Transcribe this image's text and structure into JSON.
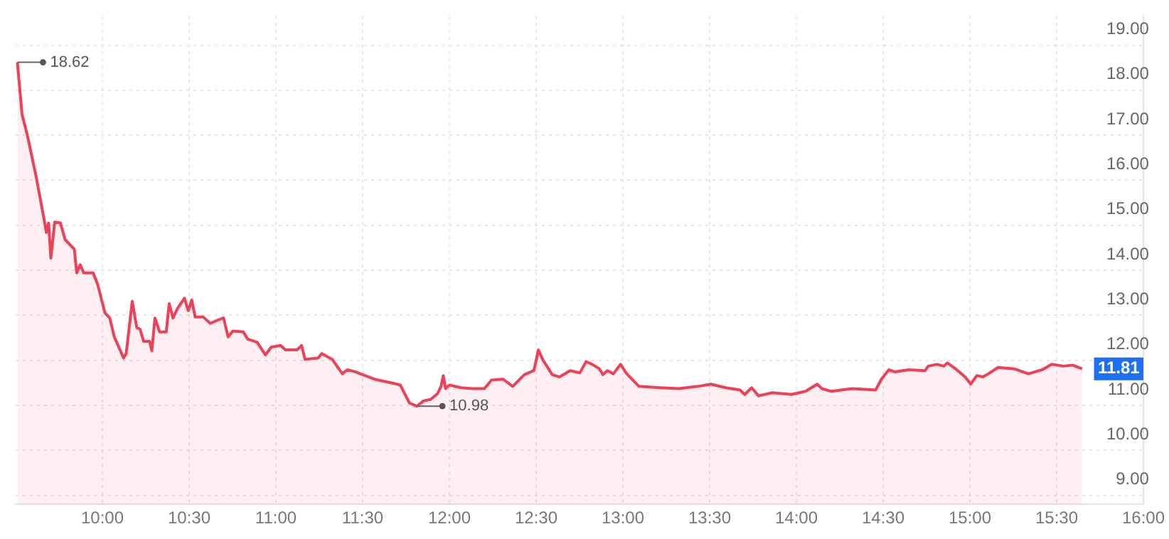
{
  "chart_data": {
    "type": "area",
    "xlim": [
      9.5,
      16.0
    ],
    "xticks": [
      {
        "value": 10,
        "label": "10:00"
      },
      {
        "value": 10.5,
        "label": "10:30"
      },
      {
        "value": 11,
        "label": "11:00"
      },
      {
        "value": 11.5,
        "label": "11:30"
      },
      {
        "value": 12,
        "label": "12:00"
      },
      {
        "value": 12.5,
        "label": "12:30"
      },
      {
        "value": 13,
        "label": "13:00"
      },
      {
        "value": 13.5,
        "label": "13:30"
      },
      {
        "value": 14,
        "label": "14:00"
      },
      {
        "value": 14.5,
        "label": "14:30"
      },
      {
        "value": 15,
        "label": "15:00"
      },
      {
        "value": 15.5,
        "label": "15:30"
      },
      {
        "value": 16,
        "label": "16:00"
      }
    ],
    "ylim": [
      8.8,
      19.65
    ],
    "yticks": [
      {
        "value": 9,
        "label": "9.00"
      },
      {
        "value": 10,
        "label": "10.00"
      },
      {
        "value": 11,
        "label": "11.00"
      },
      {
        "value": 12,
        "label": "12.00"
      },
      {
        "value": 13,
        "label": "13.00"
      },
      {
        "value": 14,
        "label": "14.00"
      },
      {
        "value": 15,
        "label": "15.00"
      },
      {
        "value": 16,
        "label": "16.00"
      },
      {
        "value": 17,
        "label": "17.00"
      },
      {
        "value": 18,
        "label": "18.00"
      },
      {
        "value": 19,
        "label": "19.00"
      }
    ],
    "grid": true,
    "legend": false,
    "marker": "none",
    "line_style": "solid",
    "annotations": [
      {
        "text": "18.62",
        "x": 9.51,
        "y": 18.62
      },
      {
        "text": "10.98",
        "x": 11.812,
        "y": 10.98
      },
      {
        "text": "11.81",
        "x": 15.647,
        "y": 11.81
      }
    ],
    "series": [
      {
        "color": "#ee4056",
        "x": [
          9.51,
          9.537,
          9.568,
          9.617,
          9.663,
          9.677,
          9.69,
          9.703,
          9.725,
          9.758,
          9.785,
          9.838,
          9.852,
          9.872,
          9.893,
          9.947,
          9.973,
          10.015,
          10.042,
          10.068,
          10.122,
          10.137,
          10.172,
          10.198,
          10.217,
          10.238,
          10.272,
          10.285,
          10.303,
          10.33,
          10.368,
          10.385,
          10.407,
          10.433,
          10.473,
          10.495,
          10.515,
          10.535,
          10.582,
          10.622,
          10.663,
          10.698,
          10.725,
          10.752,
          10.812,
          10.838,
          10.892,
          10.94,
          10.973,
          11.027,
          11.055,
          11.122,
          11.148,
          11.168,
          11.243,
          11.265,
          11.325,
          11.383,
          11.412,
          11.46,
          11.568,
          11.675,
          11.717,
          11.77,
          11.812,
          11.852,
          11.892,
          11.932,
          11.952,
          11.965,
          11.978,
          12.0,
          12.067,
          12.135,
          12.202,
          12.243,
          12.31,
          12.365,
          12.432,
          12.487,
          12.513,
          12.54,
          12.593,
          12.635,
          12.697,
          12.752,
          12.788,
          12.823,
          12.865,
          12.885,
          12.91,
          12.945,
          12.987,
          13.022,
          13.093,
          13.215,
          13.323,
          13.432,
          13.507,
          13.593,
          13.675,
          13.702,
          13.742,
          13.782,
          13.863,
          13.972,
          14.053,
          14.12,
          14.147,
          14.202,
          14.323,
          14.457,
          14.49,
          14.533,
          14.567,
          14.647,
          14.742,
          14.76,
          14.81,
          14.85,
          14.87,
          14.918,
          14.972,
          15.005,
          15.04,
          15.075,
          15.107,
          15.162,
          15.255,
          15.337,
          15.417,
          15.472,
          15.538,
          15.593,
          15.647
        ],
        "values": [
          18.62,
          17.46,
          16.99,
          16.1,
          15.15,
          14.84,
          15.05,
          14.27,
          15.07,
          15.05,
          14.68,
          14.47,
          13.94,
          14.12,
          13.94,
          13.94,
          13.68,
          13.05,
          12.94,
          12.53,
          12.05,
          12.15,
          13.31,
          12.73,
          12.69,
          12.42,
          12.42,
          12.21,
          12.94,
          12.63,
          12.63,
          13.26,
          12.94,
          13.15,
          13.38,
          13.1,
          13.34,
          12.96,
          12.96,
          12.82,
          12.89,
          12.94,
          12.52,
          12.65,
          12.63,
          12.47,
          12.4,
          12.12,
          12.29,
          12.33,
          12.23,
          12.23,
          12.33,
          12.02,
          12.05,
          12.15,
          12.02,
          11.7,
          11.79,
          11.74,
          11.58,
          11.49,
          11.45,
          11.05,
          10.98,
          11.1,
          11.13,
          11.26,
          11.42,
          11.66,
          11.37,
          11.45,
          11.39,
          11.37,
          11.37,
          11.56,
          11.58,
          11.42,
          11.68,
          11.77,
          12.23,
          12.0,
          11.68,
          11.63,
          11.77,
          11.72,
          11.97,
          11.91,
          11.81,
          11.68,
          11.77,
          11.7,
          11.91,
          11.7,
          11.42,
          11.39,
          11.37,
          11.42,
          11.47,
          11.39,
          11.34,
          11.24,
          11.39,
          11.21,
          11.28,
          11.24,
          11.31,
          11.47,
          11.37,
          11.31,
          11.37,
          11.34,
          11.58,
          11.79,
          11.74,
          11.79,
          11.77,
          11.87,
          11.91,
          11.87,
          11.94,
          11.81,
          11.63,
          11.47,
          11.66,
          11.63,
          11.7,
          11.84,
          11.81,
          11.7,
          11.79,
          11.91,
          11.87,
          11.89,
          11.81
        ]
      }
    ]
  }
}
